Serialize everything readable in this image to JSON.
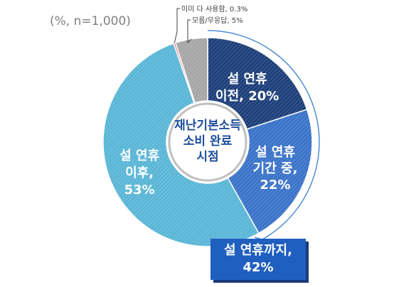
{
  "unit_note": "(%, n=1,000)",
  "center_label": [
    "재난기본소득",
    "소비 완료",
    "시점"
  ],
  "summary_box": [
    "설 연휴까지,",
    "42%"
  ],
  "chart_data": {
    "type": "pie",
    "title": "",
    "slices": [
      {
        "label": "설 연휴 이전",
        "value": 20,
        "text": [
          "설 연휴",
          "이전, 20%"
        ],
        "color": "#1d3f7a"
      },
      {
        "label": "설 연휴 기간 중",
        "value": 22,
        "text": [
          "설 연휴",
          "기간 중,",
          "22%"
        ],
        "color": "#3a73c9"
      },
      {
        "label": "설 연휴 이후",
        "value": 53,
        "text": [
          "설 연휴",
          "이후,",
          "53%"
        ],
        "color": "#5ab6d6"
      },
      {
        "label": "이미 다 사용함",
        "value": 0.3,
        "text": [
          "이미 다 사용함, 0.3%"
        ],
        "color": "#e36c6c"
      },
      {
        "label": "모름/무응답",
        "value": 5,
        "text": [
          "모름/무응답, 5%"
        ],
        "color": "#a6a6a6"
      }
    ],
    "legend": "none"
  }
}
